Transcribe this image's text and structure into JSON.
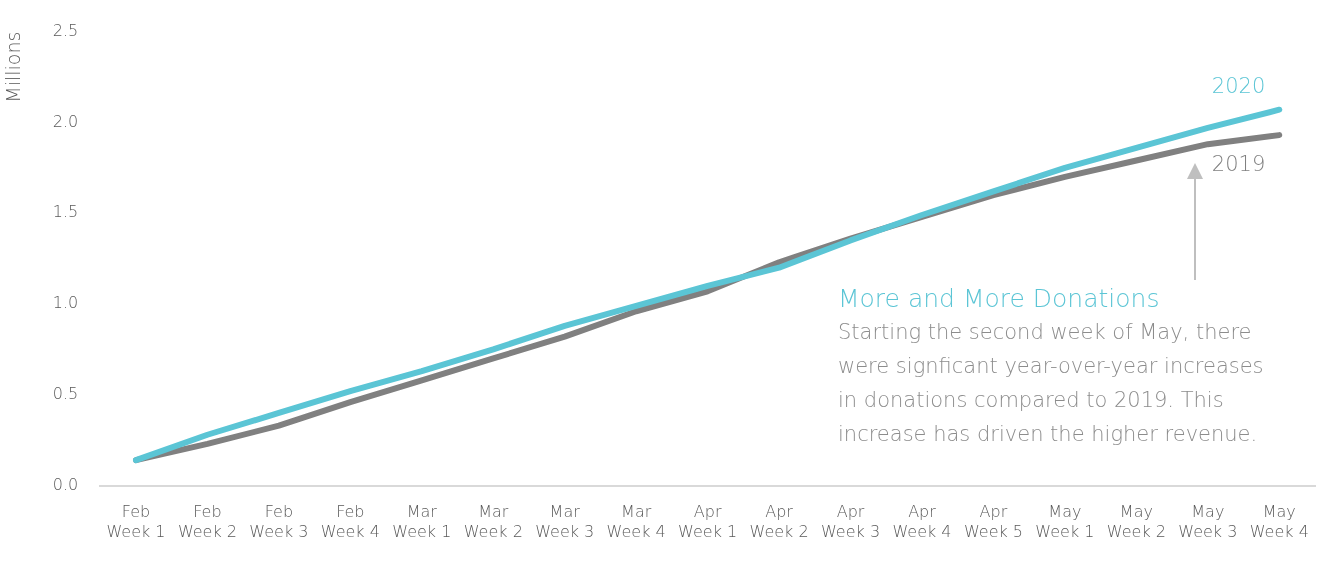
{
  "chart_data": {
    "type": "line",
    "ylabel": "Millions",
    "categories": [
      "Feb Week 1",
      "Feb Week 2",
      "Feb Week 3",
      "Feb Week 4",
      "Mar Week 1",
      "Mar Week 2",
      "Mar Week 3",
      "Mar Week 4",
      "Apr Week 1",
      "Apr Week 2",
      "Apr Week 3",
      "Apr Week 4",
      "Apr Week 5",
      "May Week 1",
      "May Week 2",
      "May Week 3",
      "May Week 4"
    ],
    "series": [
      {
        "name": "2020",
        "color": "#5bc5d5",
        "values": [
          0.14,
          0.28,
          0.4,
          0.52,
          0.63,
          0.75,
          0.88,
          0.99,
          1.1,
          1.2,
          1.35,
          1.49,
          1.62,
          1.75,
          1.86,
          1.97,
          2.07
        ]
      },
      {
        "name": "2019",
        "color": "#808080",
        "values": [
          0.14,
          0.23,
          0.33,
          0.46,
          0.58,
          0.7,
          0.82,
          0.96,
          1.07,
          1.23,
          1.36,
          1.48,
          1.6,
          1.7,
          1.79,
          1.88,
          1.93
        ]
      }
    ],
    "ylim": [
      0,
      2.5
    ],
    "yticks": [
      {
        "value": 0,
        "label": "0.0"
      },
      {
        "value": 0.5,
        "label": "0.5"
      },
      {
        "value": 1,
        "label": "1.0"
      },
      {
        "value": 1.5,
        "label": "1.5"
      },
      {
        "value": 2,
        "label": "2.0"
      },
      {
        "value": 2.5,
        "label": "2.5"
      }
    ],
    "grid": false,
    "legend": false,
    "marker": "none",
    "line_style": "solid",
    "annotations": [
      "More and More Donations",
      "Starting the second week of May, there were signficant year-over-year increases in donations compared to 2019. This increase has driven the higher revenue."
    ]
  }
}
